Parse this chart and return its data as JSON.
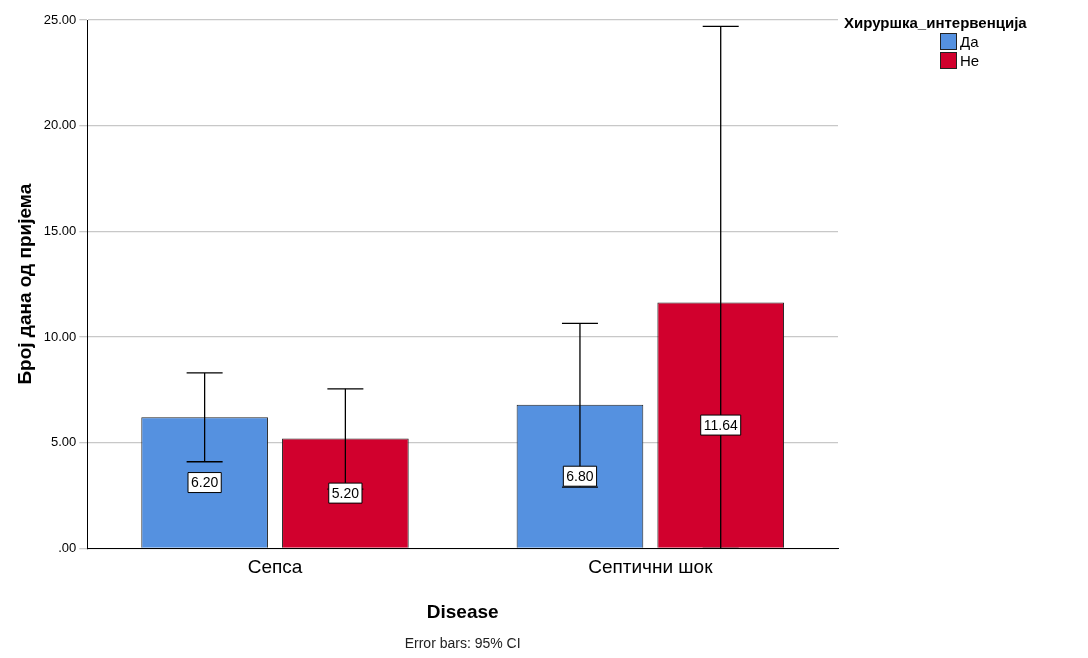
{
  "chart_data": {
    "type": "bar",
    "xlabel": "Disease",
    "ylabel": "Број дана од пријема",
    "legend_title": "Хируршка_интервенција",
    "categories": [
      "Сепса",
      "Септични шок"
    ],
    "series": [
      {
        "name": "Да",
        "color": "#5591e0",
        "values": [
          6.2,
          6.8
        ],
        "errors": [
          [
            4.1,
            8.3
          ],
          [
            2.9,
            10.65
          ]
        ],
        "value_labels": [
          "6.20",
          "6.80"
        ]
      },
      {
        "name": "Не",
        "color": "#d1002d",
        "values": [
          5.2,
          11.64
        ],
        "errors": [
          [
            2.8,
            7.55
          ],
          [
            0,
            24.7
          ]
        ],
        "value_labels": [
          "5.20",
          "11.64"
        ]
      }
    ],
    "ylim": [
      0,
      25
    ],
    "yticks": [
      {
        "value": 0,
        "label": ".00"
      },
      {
        "value": 5,
        "label": "5.00"
      },
      {
        "value": 10,
        "label": "10.00"
      },
      {
        "value": 15,
        "label": "15.00"
      },
      {
        "value": 20,
        "label": "20.00"
      },
      {
        "value": 25,
        "label": "25.00"
      }
    ],
    "grid": "y",
    "legend": "top right",
    "annotations": [
      "Error bars: 95% CI"
    ]
  }
}
